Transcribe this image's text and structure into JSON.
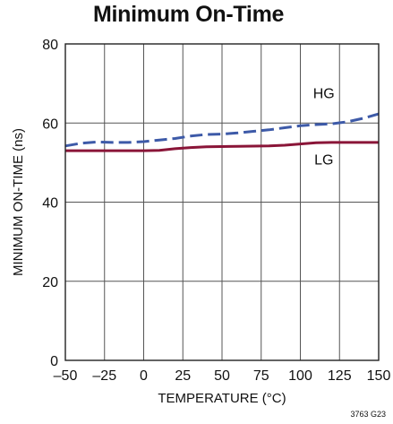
{
  "chart_data": {
    "type": "line",
    "title": "Minimum On-Time",
    "xlabel": "TEMPERATURE (°C)",
    "ylabel": "MINIMUM ON-TIME (ns)",
    "xlim": [
      -50,
      150
    ],
    "ylim": [
      0,
      80
    ],
    "xticks": [
      -50,
      -25,
      0,
      25,
      50,
      75,
      100,
      125,
      150
    ],
    "xtick_labels": [
      "–50",
      "–25",
      "0",
      "25",
      "50",
      "75",
      "100",
      "125",
      "150"
    ],
    "yticks": [
      0,
      20,
      40,
      60,
      80
    ],
    "ytick_labels": [
      "0",
      "20",
      "40",
      "60",
      "80"
    ],
    "grid": true,
    "series": [
      {
        "name": "HG",
        "color": "#3d5aa8",
        "style": "dashed",
        "x": [
          -50,
          -40,
          -30,
          -20,
          -10,
          0,
          10,
          20,
          30,
          40,
          50,
          60,
          70,
          80,
          90,
          100,
          110,
          120,
          130,
          140,
          150
        ],
        "y": [
          54.2,
          54.9,
          55.2,
          55.1,
          55.1,
          55.3,
          55.7,
          56.1,
          56.7,
          57.1,
          57.2,
          57.5,
          57.9,
          58.3,
          58.8,
          59.3,
          59.6,
          59.8,
          60.3,
          61.2,
          62.3
        ]
      },
      {
        "name": "LG",
        "color": "#8a1538",
        "style": "solid",
        "x": [
          -50,
          -25,
          0,
          10,
          20,
          30,
          40,
          60,
          80,
          90,
          100,
          110,
          120,
          130,
          150
        ],
        "y": [
          53.0,
          53.0,
          53.0,
          53.1,
          53.5,
          53.8,
          54.0,
          54.1,
          54.2,
          54.4,
          54.7,
          55.0,
          55.1,
          55.1,
          55.1
        ]
      }
    ],
    "figure_id": "3763 G23"
  }
}
